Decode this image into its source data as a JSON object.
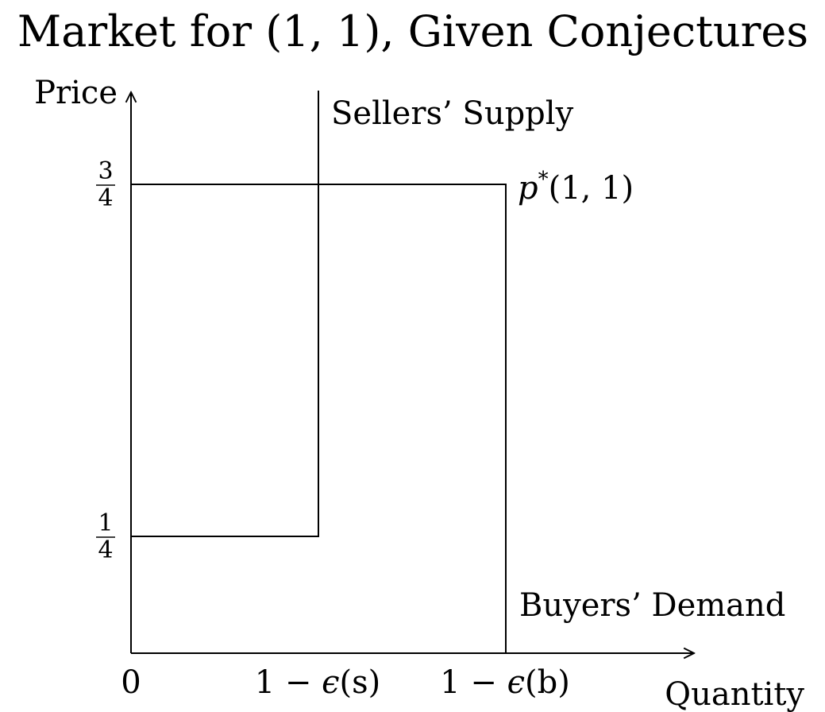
{
  "title": "Market for (1, 1), Given Conjectures",
  "y_axis_label": "Price",
  "x_axis_label": "Quantity",
  "origin_label": "0",
  "y_ticks": [
    {
      "num": "3",
      "den": "4"
    },
    {
      "num": "1",
      "den": "4"
    }
  ],
  "x_ticks": {
    "seller": {
      "prefix": "1 − ",
      "eps": "ϵ",
      "arg": "(s)"
    },
    "buyer": {
      "prefix": "1 − ",
      "eps": "ϵ",
      "arg": "(b)"
    }
  },
  "labels": {
    "supply": "Sellers’ Supply",
    "demand": "Buyers’ Demand",
    "equilibrium_p": "p",
    "equilibrium_star": "*",
    "equilibrium_arg": "(1, 1)"
  },
  "colors": {
    "equilibrium": "#D55E00",
    "lines": "#000000"
  }
}
